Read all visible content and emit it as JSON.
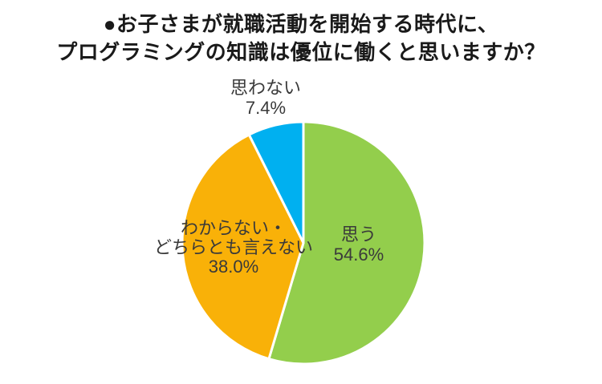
{
  "title": {
    "line1": "●お子さまが就職活動を開始する時代に、",
    "line2": "プログラミングの知識は優位に働くと思いますか？"
  },
  "colors": {
    "background": "#FFFFFF",
    "title_text": "#1A1A1A",
    "label_text": "#3A3A3A",
    "separator": "#FFFFFF",
    "green": "#93CE4C",
    "orange": "#F9B108",
    "blue": "#00B0F0"
  },
  "chart_data": {
    "type": "pie",
    "title": "●お子さまが就職活動を開始する時代に、プログラミングの知識は優位に働くと思いますか？",
    "unit": "%",
    "start_angle_deg": 0,
    "direction": "clockwise",
    "legend": "none",
    "slices": [
      {
        "label": "思う",
        "value": 54.6,
        "color": "#93CE4C",
        "label_lines": [
          "思う",
          "54.6%"
        ],
        "label_position": "inside-right"
      },
      {
        "label": "わからない・どちらとも言えない",
        "value": 38.0,
        "color": "#F9B108",
        "label_lines": [
          "わからない・",
          "どちらとも言えない",
          "38.0%"
        ],
        "label_position": "inside-left"
      },
      {
        "label": "思わない",
        "value": 7.4,
        "color": "#00B0F0",
        "label_lines": [
          "思わない",
          "7.4%"
        ],
        "label_position": "outside-top"
      }
    ]
  }
}
